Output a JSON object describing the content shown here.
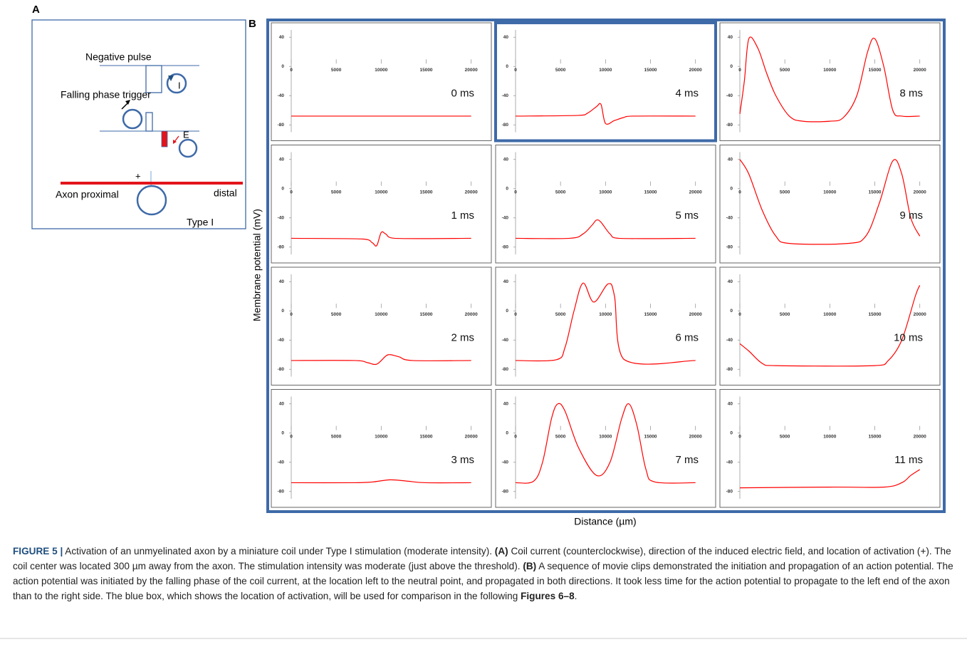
{
  "panel_a": {
    "label": "A",
    "negative_pulse": "Negative pulse",
    "current": "I",
    "falling_phase": "Falling phase trigger",
    "field": "E",
    "plus": "+",
    "axon_proximal": "Axon proximal",
    "distal": "distal",
    "type": "Type I"
  },
  "panel_b_label": "B",
  "ylabel": "Membrane potential (mV)",
  "xlabel": "Distance (µm)",
  "chart_data": [
    {
      "type": "line",
      "label": "0 ms",
      "color": "#ff0000",
      "highlight": false,
      "x": [
        0,
        20000
      ],
      "values": [
        -68,
        -68
      ],
      "xlim": [
        0,
        20500
      ],
      "ylim": [
        -90,
        50
      ],
      "xticks": [
        0,
        5000,
        10000,
        15000,
        20000
      ],
      "yticks": [
        40,
        0,
        -40,
        -80
      ]
    },
    {
      "type": "line",
      "label": "4 ms",
      "color": "#ff0000",
      "highlight": true,
      "x": [
        0,
        7000,
        8000,
        9000,
        9500,
        10000,
        11000,
        12000,
        13000,
        20000
      ],
      "values": [
        -68,
        -67,
        -64,
        -55,
        -52,
        -78,
        -74,
        -70,
        -68,
        -68
      ],
      "xlim": [
        0,
        20500
      ],
      "ylim": [
        -90,
        50
      ],
      "xticks": [
        0,
        5000,
        10000,
        15000,
        20000
      ],
      "yticks": [
        40,
        0,
        -40,
        -80
      ]
    },
    {
      "type": "line",
      "label": "8 ms",
      "color": "#ff0000",
      "highlight": false,
      "x": [
        0,
        500,
        1000,
        2000,
        3000,
        4000,
        5500,
        7000,
        10000,
        11500,
        13000,
        14200,
        15000,
        16000,
        17000,
        18000,
        20000
      ],
      "values": [
        -65,
        -20,
        38,
        25,
        -10,
        -40,
        -68,
        -75,
        -75,
        -70,
        -40,
        20,
        38,
        0,
        -60,
        -68,
        -68
      ],
      "xlim": [
        0,
        20500
      ],
      "ylim": [
        -90,
        50
      ],
      "xticks": [
        0,
        5000,
        10000,
        15000,
        20000
      ],
      "yticks": [
        40,
        0,
        -40,
        -80
      ]
    },
    {
      "type": "line",
      "label": "1 ms",
      "color": "#ff0000",
      "highlight": false,
      "x": [
        0,
        8000,
        9000,
        9500,
        10000,
        10500,
        11500,
        20000
      ],
      "values": [
        -68,
        -69,
        -74,
        -78,
        -60,
        -62,
        -68,
        -68
      ],
      "xlim": [
        0,
        20500
      ],
      "ylim": [
        -90,
        50
      ],
      "xticks": [
        0,
        5000,
        10000,
        15000,
        20000
      ],
      "yticks": [
        40,
        0,
        -40,
        -80
      ]
    },
    {
      "type": "line",
      "label": "5 ms",
      "color": "#ff0000",
      "highlight": false,
      "x": [
        0,
        6000,
        7500,
        8500,
        9000,
        9500,
        10500,
        11500,
        20000
      ],
      "values": [
        -68,
        -68,
        -62,
        -50,
        -43,
        -46,
        -62,
        -68,
        -68
      ],
      "xlim": [
        0,
        20500
      ],
      "ylim": [
        -90,
        50
      ],
      "xticks": [
        0,
        5000,
        10000,
        15000,
        20000
      ],
      "yticks": [
        40,
        0,
        -40,
        -80
      ]
    },
    {
      "type": "line",
      "label": "9 ms",
      "color": "#ff0000",
      "highlight": false,
      "x": [
        0,
        1000,
        2500,
        4000,
        5500,
        12000,
        14000,
        15500,
        17000,
        18000,
        19000,
        20000
      ],
      "values": [
        40,
        20,
        -30,
        -65,
        -75,
        -75,
        -65,
        -20,
        38,
        20,
        -40,
        -65
      ],
      "xlim": [
        0,
        20500
      ],
      "ylim": [
        -90,
        50
      ],
      "xticks": [
        0,
        5000,
        10000,
        15000,
        20000
      ],
      "yticks": [
        40,
        0,
        -40,
        -80
      ]
    },
    {
      "type": "line",
      "label": "2 ms",
      "color": "#ff0000",
      "highlight": false,
      "x": [
        0,
        7000,
        8500,
        9500,
        10500,
        11000,
        12000,
        13500,
        20000
      ],
      "values": [
        -68,
        -68,
        -71,
        -73,
        -62,
        -60,
        -63,
        -68,
        -68
      ],
      "xlim": [
        0,
        20500
      ],
      "ylim": [
        -90,
        50
      ],
      "xticks": [
        0,
        5000,
        10000,
        15000,
        20000
      ],
      "yticks": [
        40,
        0,
        -40,
        -80
      ]
    },
    {
      "type": "line",
      "label": "6 ms",
      "color": "#ff0000",
      "highlight": false,
      "x": [
        0,
        4500,
        5500,
        6500,
        7500,
        8700,
        10300,
        11000,
        12000,
        20000
      ],
      "values": [
        -68,
        -67,
        -50,
        0,
        38,
        12,
        37,
        20,
        -66,
        -68
      ],
      "xlim": [
        0,
        20500
      ],
      "ylim": [
        -90,
        50
      ],
      "xticks": [
        0,
        5000,
        10000,
        15000,
        20000
      ],
      "yticks": [
        40,
        0,
        -40,
        -80
      ]
    },
    {
      "type": "line",
      "label": "10 ms",
      "color": "#ff0000",
      "highlight": false,
      "x": [
        0,
        1000,
        2500,
        4000,
        15000,
        16500,
        18000,
        19500,
        20000
      ],
      "values": [
        -45,
        -55,
        -72,
        -75,
        -75,
        -68,
        -40,
        20,
        35
      ],
      "xlim": [
        0,
        20500
      ],
      "ylim": [
        -90,
        50
      ],
      "xticks": [
        0,
        5000,
        10000,
        15000,
        20000
      ],
      "yticks": [
        40,
        0,
        -40,
        -80
      ]
    },
    {
      "type": "line",
      "label": "3 ms",
      "color": "#ff0000",
      "highlight": false,
      "x": [
        0,
        7000,
        9000,
        11000,
        13000,
        15000,
        20000
      ],
      "values": [
        -68,
        -68,
        -67,
        -64,
        -66,
        -68,
        -68
      ],
      "xlim": [
        0,
        20500
      ],
      "ylim": [
        -90,
        50
      ],
      "xticks": [
        0,
        5000,
        10000,
        15000,
        20000
      ],
      "yticks": [
        40,
        0,
        -40,
        -80
      ]
    },
    {
      "type": "line",
      "label": "7 ms",
      "color": "#ff0000",
      "highlight": false,
      "x": [
        0,
        2000,
        3000,
        4000,
        4700,
        5500,
        7000,
        9000,
        10500,
        11800,
        12600,
        13500,
        14500,
        15500,
        20000
      ],
      "values": [
        -68,
        -66,
        -40,
        20,
        40,
        30,
        -20,
        -58,
        -40,
        20,
        40,
        10,
        -50,
        -67,
        -68
      ],
      "xlim": [
        0,
        20500
      ],
      "ylim": [
        -90,
        50
      ],
      "xticks": [
        0,
        5000,
        10000,
        15000,
        20000
      ],
      "yticks": [
        40,
        0,
        -40,
        -80
      ]
    },
    {
      "type": "line",
      "label": "11 ms",
      "color": "#ff0000",
      "highlight": false,
      "x": [
        0,
        10000,
        16000,
        18000,
        19000,
        20000
      ],
      "values": [
        -75,
        -74,
        -74,
        -68,
        -58,
        -50
      ],
      "xlim": [
        0,
        20500
      ],
      "ylim": [
        -90,
        50
      ],
      "xticks": [
        0,
        5000,
        10000,
        15000,
        20000
      ],
      "yticks": [
        40,
        0,
        -40,
        -80
      ]
    }
  ],
  "caption_label": "FIGURE 5 |",
  "caption": [
    {
      "text": " Activation of an unmyelinated axon by a miniature coil under Type I stimulation (moderate intensity). ",
      "bold": false
    },
    {
      "text": "(A)",
      "bold": true
    },
    {
      "text": " Coil current (counterclockwise), direction of the induced electric field, and location of activation (+). The coil center was located 300 µm away from the axon. The stimulation intensity was moderate (just above the threshold). ",
      "bold": false
    },
    {
      "text": "(B)",
      "bold": true
    },
    {
      "text": " A sequence of movie clips demonstrated the initiation and propagation of an action potential. The action potential was initiated by the falling phase of the coil current, at the location left to the neutral point, and propagated in both directions. It took less time for the action potential to propagate to the left end of the axon than to the right side. The blue box, which shows the location of activation, will be used for comparison in the following ",
      "bold": false
    },
    {
      "text": "Figures 6–8",
      "bold": true
    },
    {
      "text": ".",
      "bold": false
    }
  ]
}
